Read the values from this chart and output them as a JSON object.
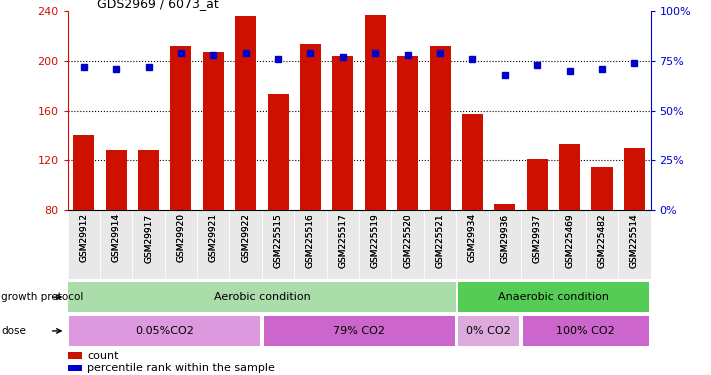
{
  "title": "GDS2969 / 6073_at",
  "samples": [
    "GSM29912",
    "GSM29914",
    "GSM29917",
    "GSM29920",
    "GSM29921",
    "GSM29922",
    "GSM225515",
    "GSM225516",
    "GSM225517",
    "GSM225519",
    "GSM225520",
    "GSM225521",
    "GSM29934",
    "GSM29936",
    "GSM29937",
    "GSM225469",
    "GSM225482",
    "GSM225514"
  ],
  "counts": [
    140,
    128,
    128,
    212,
    207,
    236,
    173,
    214,
    204,
    237,
    204,
    212,
    157,
    85,
    121,
    133,
    115,
    130
  ],
  "percentiles": [
    72,
    71,
    72,
    79,
    78,
    79,
    76,
    79,
    77,
    79,
    78,
    79,
    76,
    68,
    73,
    70,
    71,
    74
  ],
  "ylim_left": [
    80,
    240
  ],
  "ylim_right": [
    0,
    100
  ],
  "yticks_left": [
    80,
    120,
    160,
    200,
    240
  ],
  "yticks_right": [
    0,
    25,
    50,
    75,
    100
  ],
  "bar_color": "#cc1100",
  "dot_color": "#0000cc",
  "aerobic_color": "#aaddaa",
  "anaerobic_color": "#55cc55",
  "dose_colors": [
    "#dd99dd",
    "#cc66cc",
    "#ddaadd",
    "#cc66cc"
  ],
  "growth_protocol_label": "growth protocol",
  "dose_label": "dose",
  "aerobic_label": "Aerobic condition",
  "anaerobic_label": "Anaerobic condition",
  "aerobic_indices": [
    0,
    1,
    2,
    3,
    4,
    5,
    6,
    7,
    8,
    9,
    10,
    11
  ],
  "anaerobic_indices": [
    12,
    13,
    14,
    15,
    16,
    17
  ],
  "doses": [
    {
      "label": "0.05%CO2",
      "indices": [
        0,
        1,
        2,
        3,
        4,
        5
      ]
    },
    {
      "label": "79% CO2",
      "indices": [
        6,
        7,
        8,
        9,
        10,
        11
      ]
    },
    {
      "label": "0% CO2",
      "indices": [
        12,
        13
      ]
    },
    {
      "label": "100% CO2",
      "indices": [
        14,
        15,
        16,
        17
      ]
    }
  ],
  "legend_count_color": "#cc1100",
  "legend_dot_color": "#0000cc"
}
